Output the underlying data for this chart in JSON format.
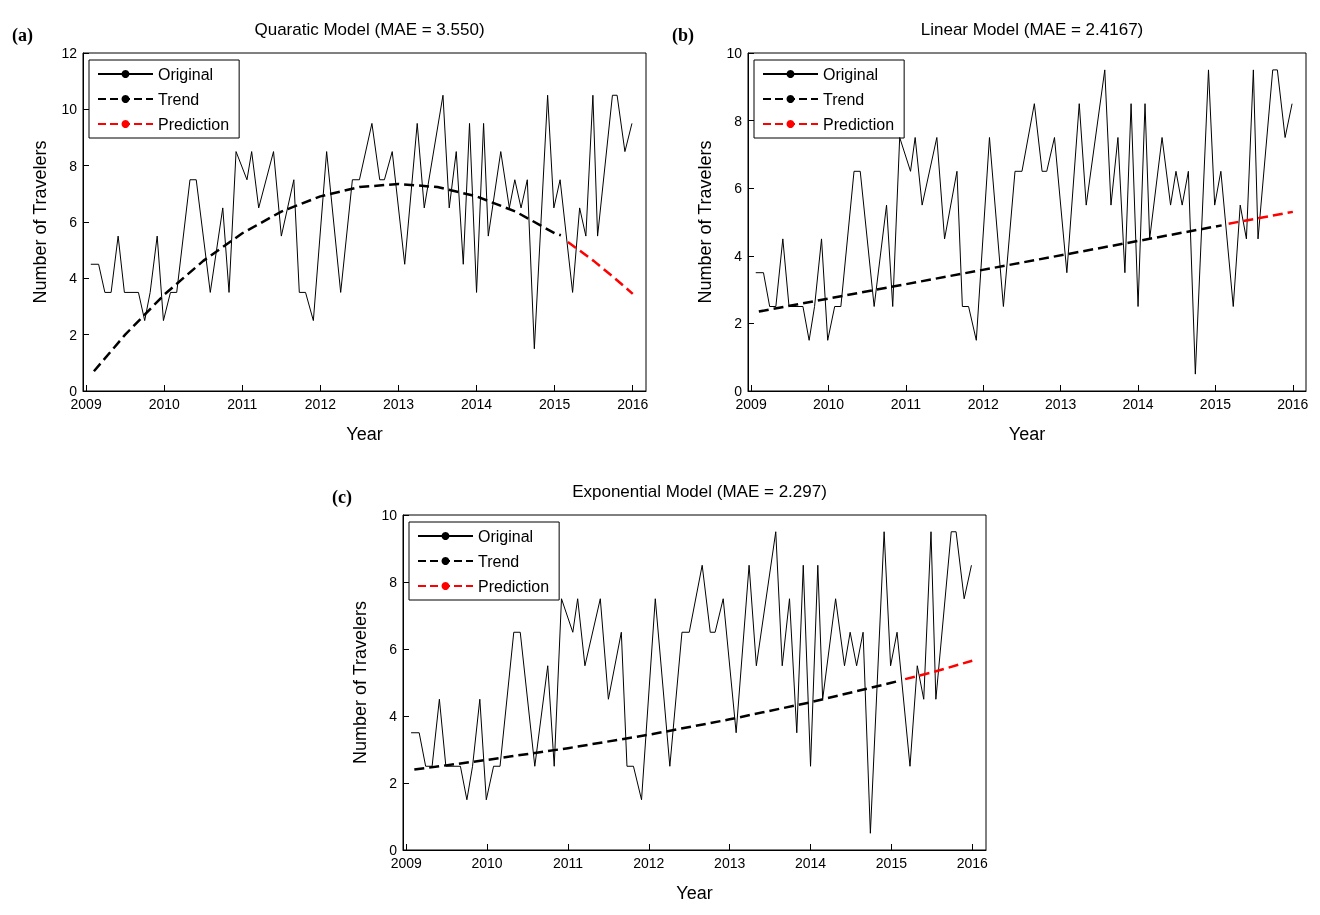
{
  "chart_data": [
    {
      "type": "line",
      "title": "Quaratic Model (MAE = 3.550)",
      "xlabel": "Year",
      "ylabel": "Number of Travelers",
      "annotations": [
        "(a)"
      ],
      "legend": "top left",
      "marker": "none",
      "xlim": [
        2008.96,
        2016.17
      ],
      "xticks": [
        2009,
        2010,
        2011,
        2012,
        2013,
        2014,
        2015,
        2016
      ],
      "ylim": [
        0,
        12
      ],
      "yticks": [
        0,
        2,
        4,
        6,
        8,
        10,
        12
      ],
      "series": [
        {
          "name": "Original",
          "color": "#000000",
          "line_style": "solid",
          "x": [
            2009.06,
            2009.16,
            2009.24,
            2009.32,
            2009.41,
            2009.49,
            2009.67,
            2009.75,
            2009.82,
            2009.91,
            2009.99,
            2010.08,
            2010.16,
            2010.33,
            2010.41,
            2010.59,
            2010.75,
            2010.83,
            2010.92,
            2011.06,
            2011.12,
            2011.21,
            2011.4,
            2011.5,
            2011.66,
            2011.73,
            2011.81,
            2011.91,
            2012.08,
            2012.26,
            2012.41,
            2012.5,
            2012.66,
            2012.76,
            2012.82,
            2012.92,
            2013.08,
            2013.24,
            2013.33,
            2013.57,
            2013.65,
            2013.74,
            2013.83,
            2013.91,
            2014.0,
            2014.09,
            2014.15,
            2014.31,
            2014.42,
            2014.49,
            2014.57,
            2014.65,
            2014.74,
            2014.91,
            2014.99,
            2015.07,
            2015.23,
            2015.32,
            2015.4,
            2015.49,
            2015.55,
            2015.74,
            2015.8,
            2015.9,
            2015.99
          ],
          "values": [
            4.5,
            4.5,
            3.5,
            3.5,
            5.5,
            3.5,
            3.5,
            2.5,
            3.5,
            5.5,
            2.5,
            3.5,
            3.5,
            7.5,
            7.5,
            3.5,
            6.5,
            3.5,
            8.5,
            7.5,
            8.5,
            6.5,
            8.5,
            5.5,
            7.5,
            3.5,
            3.5,
            2.5,
            8.5,
            3.5,
            7.5,
            7.5,
            9.5,
            7.5,
            7.5,
            8.5,
            4.5,
            9.5,
            6.5,
            10.5,
            6.5,
            8.5,
            4.5,
            9.5,
            3.5,
            9.5,
            5.5,
            8.5,
            6.5,
            7.5,
            6.5,
            7.5,
            1.5,
            10.5,
            6.5,
            7.5,
            3.5,
            6.5,
            5.5,
            10.5,
            5.5,
            10.5,
            10.5,
            8.5,
            9.5
          ]
        },
        {
          "name": "Trend",
          "color": "#000000",
          "line_style": "dashed",
          "x": [
            2009.1,
            2009.5,
            2010,
            2010.5,
            2011,
            2011.5,
            2012,
            2012.5,
            2013,
            2013.5,
            2014,
            2014.5,
            2015,
            2015.08
          ],
          "values": [
            0.7,
            2.0,
            3.42,
            4.62,
            5.6,
            6.37,
            6.91,
            7.24,
            7.35,
            7.24,
            6.91,
            6.37,
            5.6,
            5.53
          ]
        },
        {
          "name": "Prediction",
          "color": "#ff0000",
          "line_style": "dashed",
          "x": [
            2015.17,
            2015.5,
            2015.75,
            2016
          ],
          "values": [
            5.29,
            4.62,
            4.05,
            3.45
          ]
        }
      ]
    },
    {
      "type": "line",
      "title": "Linear Model (MAE = 2.4167)",
      "xlabel": "Year",
      "ylabel": "Number of Travelers",
      "annotations": [
        "(b)"
      ],
      "legend": "top left",
      "marker": "none",
      "xlim": [
        2008.96,
        2016.17
      ],
      "xticks": [
        2009,
        2010,
        2011,
        2012,
        2013,
        2014,
        2015,
        2016
      ],
      "ylim": [
        0,
        10
      ],
      "yticks": [
        0,
        2,
        4,
        6,
        8,
        10
      ],
      "series": [
        {
          "name": "Original",
          "color": "#000000",
          "line_style": "solid",
          "x": [
            2009.06,
            2009.16,
            2009.24,
            2009.32,
            2009.41,
            2009.49,
            2009.67,
            2009.75,
            2009.82,
            2009.91,
            2009.99,
            2010.08,
            2010.16,
            2010.33,
            2010.41,
            2010.59,
            2010.75,
            2010.83,
            2010.92,
            2011.06,
            2011.12,
            2011.21,
            2011.4,
            2011.5,
            2011.66,
            2011.73,
            2011.81,
            2011.91,
            2012.08,
            2012.26,
            2012.41,
            2012.5,
            2012.66,
            2012.76,
            2012.82,
            2012.92,
            2013.08,
            2013.24,
            2013.33,
            2013.57,
            2013.65,
            2013.74,
            2013.83,
            2013.91,
            2014.0,
            2014.09,
            2014.15,
            2014.31,
            2014.42,
            2014.49,
            2014.57,
            2014.65,
            2014.74,
            2014.91,
            2014.99,
            2015.07,
            2015.23,
            2015.32,
            2015.4,
            2015.49,
            2015.55,
            2015.74,
            2015.8,
            2015.9,
            2015.99
          ],
          "values": [
            3.5,
            3.5,
            2.5,
            2.5,
            4.5,
            2.5,
            2.5,
            1.5,
            2.5,
            4.5,
            1.5,
            2.5,
            2.5,
            6.5,
            6.5,
            2.5,
            5.5,
            2.5,
            7.5,
            6.5,
            7.5,
            5.5,
            7.5,
            4.5,
            6.5,
            2.5,
            2.5,
            1.5,
            7.5,
            2.5,
            6.5,
            6.5,
            8.5,
            6.5,
            6.5,
            7.5,
            3.5,
            8.5,
            5.5,
            9.5,
            5.5,
            7.5,
            3.5,
            8.5,
            2.5,
            8.5,
            4.5,
            7.5,
            5.5,
            6.5,
            5.5,
            6.5,
            0.5,
            9.5,
            5.5,
            6.5,
            2.5,
            5.5,
            4.5,
            9.5,
            4.5,
            9.5,
            9.5,
            7.5,
            8.5
          ]
        },
        {
          "name": "Trend",
          "color": "#000000",
          "line_style": "dashed",
          "x": [
            2009.1,
            2015.08
          ],
          "values": [
            2.35,
            4.9
          ]
        },
        {
          "name": "Prediction",
          "color": "#ff0000",
          "line_style": "dashed",
          "x": [
            2015.17,
            2016
          ],
          "values": [
            4.95,
            5.3
          ]
        }
      ]
    },
    {
      "type": "line",
      "title": "Exponential Model (MAE = 2.297)",
      "xlabel": "Year",
      "ylabel": "Number of Travelers",
      "annotations": [
        "(c)"
      ],
      "legend": "top left",
      "marker": "none",
      "xlim": [
        2008.96,
        2016.17
      ],
      "xticks": [
        2009,
        2010,
        2011,
        2012,
        2013,
        2014,
        2015,
        2016
      ],
      "ylim": [
        0,
        10
      ],
      "yticks": [
        0,
        2,
        4,
        6,
        8,
        10
      ],
      "series": [
        {
          "name": "Original",
          "color": "#000000",
          "line_style": "solid",
          "x": [
            2009.06,
            2009.16,
            2009.24,
            2009.32,
            2009.41,
            2009.49,
            2009.67,
            2009.75,
            2009.82,
            2009.91,
            2009.99,
            2010.08,
            2010.16,
            2010.33,
            2010.41,
            2010.59,
            2010.75,
            2010.83,
            2010.92,
            2011.06,
            2011.12,
            2011.21,
            2011.4,
            2011.5,
            2011.66,
            2011.73,
            2011.81,
            2011.91,
            2012.08,
            2012.26,
            2012.41,
            2012.5,
            2012.66,
            2012.76,
            2012.82,
            2012.92,
            2013.08,
            2013.24,
            2013.33,
            2013.57,
            2013.65,
            2013.74,
            2013.83,
            2013.91,
            2014.0,
            2014.09,
            2014.15,
            2014.31,
            2014.42,
            2014.49,
            2014.57,
            2014.65,
            2014.74,
            2014.91,
            2014.99,
            2015.07,
            2015.23,
            2015.32,
            2015.4,
            2015.49,
            2015.55,
            2015.74,
            2015.8,
            2015.9,
            2015.99
          ],
          "values": [
            3.5,
            3.5,
            2.5,
            2.5,
            4.5,
            2.5,
            2.5,
            1.5,
            2.5,
            4.5,
            1.5,
            2.5,
            2.5,
            6.5,
            6.5,
            2.5,
            5.5,
            2.5,
            7.5,
            6.5,
            7.5,
            5.5,
            7.5,
            4.5,
            6.5,
            2.5,
            2.5,
            1.5,
            7.5,
            2.5,
            6.5,
            6.5,
            8.5,
            6.5,
            6.5,
            7.5,
            3.5,
            8.5,
            5.5,
            9.5,
            5.5,
            7.5,
            3.5,
            8.5,
            2.5,
            8.5,
            4.5,
            7.5,
            5.5,
            6.5,
            5.5,
            6.5,
            0.5,
            9.5,
            5.5,
            6.5,
            2.5,
            5.5,
            4.5,
            9.5,
            4.5,
            9.5,
            9.5,
            7.5,
            8.5
          ]
        },
        {
          "name": "Trend",
          "color": "#000000",
          "line_style": "dashed",
          "x": [
            2009.1,
            2010,
            2011,
            2012,
            2013,
            2014,
            2015,
            2015.08
          ],
          "values": [
            2.4,
            2.69,
            3.04,
            3.44,
            3.9,
            4.41,
            4.99,
            5.04
          ]
        },
        {
          "name": "Prediction",
          "color": "#ff0000",
          "line_style": "dashed",
          "x": [
            2015.17,
            2015.5,
            2016
          ],
          "values": [
            5.1,
            5.3,
            5.65
          ]
        }
      ]
    }
  ]
}
